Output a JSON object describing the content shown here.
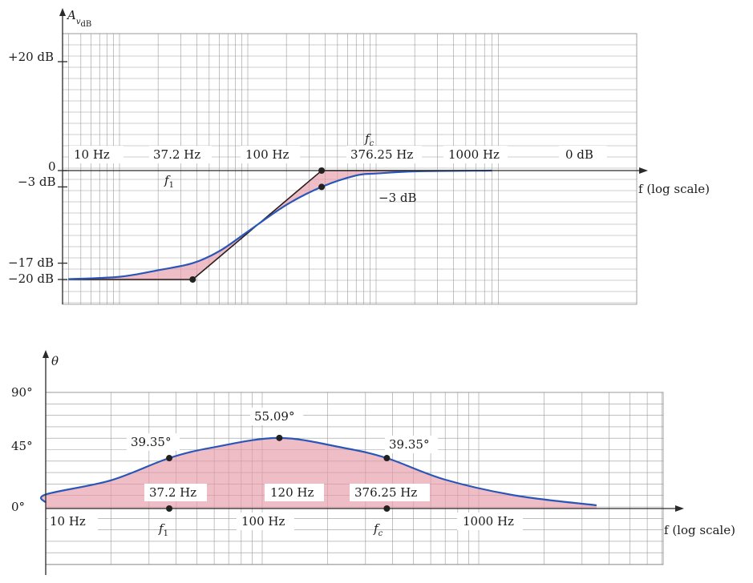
{
  "colors": {
    "curve": "#2a56b8",
    "asymptote": "#2b1d1d",
    "shading": "#e59aa6"
  },
  "chart_data": [
    {
      "type": "line",
      "title": "",
      "xscale": "log",
      "xlabel": "f (log scale)",
      "ylabel": {
        "main": "A",
        "sub": "v",
        "subsub": "dB"
      },
      "ylim": [
        -20,
        20
      ],
      "y_ticks": [
        "+20 dB",
        "0",
        "−3 dB",
        "−17 dB",
        "−20 dB"
      ],
      "x_ticks": [
        "10 Hz",
        "37.2 Hz",
        "100 Hz",
        "376.25 Hz",
        "1000 Hz"
      ],
      "grid": true,
      "corner_freqs": {
        "f1": 37.2,
        "fc": 376.25
      },
      "series": [
        {
          "x": [
            4,
            10,
            20,
            37.2,
            60,
            100,
            200,
            376.25,
            700,
            1000,
            2000,
            8000
          ],
          "y": [
            -19.92,
            -19.5,
            -18.3,
            -17,
            -14.8,
            -11.2,
            -6.3,
            -3,
            -0.9,
            -0.55,
            -0.15,
            0
          ]
        },
        {
          "x": [
            4,
            37.2,
            376.25,
            8000
          ],
          "y": [
            -20,
            -20,
            0,
            0
          ]
        }
      ],
      "annotations": {
        "fc": "f",
        "fc_sub": "c",
        "f1": "f",
        "f1_sub": "1",
        "minus3": "−3 dB",
        "zero_db": "0 dB"
      }
    },
    {
      "type": "line",
      "title": "",
      "xscale": "log",
      "xlabel": "f (log scale)",
      "ylabel": "θ",
      "ylim": [
        0,
        90
      ],
      "y_ticks": [
        "90°",
        "45°",
        "0°"
      ],
      "x_ticks": [
        "10 Hz",
        "100 Hz",
        "1000 Hz"
      ],
      "grid": true,
      "series": [
        {
          "x": [
            4,
            10,
            20,
            37.2,
            60,
            120,
            240,
            376.25,
            700,
            1500,
            3500
          ],
          "y": [
            4.6,
            11,
            22,
            39.35,
            47.9,
            55.09,
            47.2,
            39.35,
            22.5,
            10,
            2.5
          ]
        }
      ],
      "points": [
        {
          "x": 37.2,
          "y": 39.35,
          "label": "39.35°"
        },
        {
          "x": 120,
          "y": 55.09,
          "label": "55.09°"
        },
        {
          "x": 376.25,
          "y": 39.35,
          "label": "39.35°"
        }
      ],
      "annotations": {
        "f1_freq": "37.2 Hz",
        "peak_freq": "120 Hz",
        "fc_freq": "376.25 Hz",
        "f1": "f",
        "f1_sub": "1",
        "fc": "f",
        "fc_sub": "c"
      }
    }
  ]
}
